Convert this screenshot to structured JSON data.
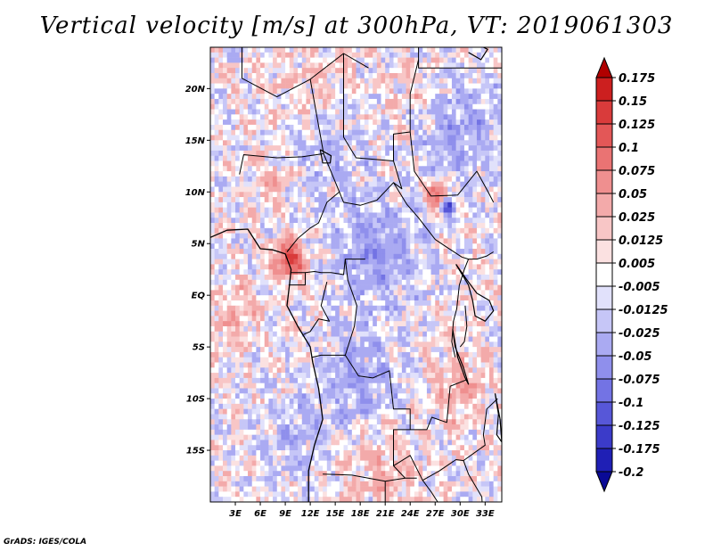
{
  "chart_data": {
    "type": "heatmap",
    "title": "Vertical velocity [m/s] at 300hPa, VT: 2019061303",
    "variable": "Vertical velocity",
    "units": "m/s",
    "level": "300hPa",
    "valid_time": "2019061303",
    "lon_range": [
      0,
      35
    ],
    "lat_range": [
      -20,
      24
    ],
    "x_ticks": [
      {
        "value": 3,
        "label": "3E"
      },
      {
        "value": 6,
        "label": "6E"
      },
      {
        "value": 9,
        "label": "9E"
      },
      {
        "value": 12,
        "label": "12E"
      },
      {
        "value": 15,
        "label": "15E"
      },
      {
        "value": 18,
        "label": "18E"
      },
      {
        "value": 21,
        "label": "21E"
      },
      {
        "value": 24,
        "label": "24E"
      },
      {
        "value": 27,
        "label": "27E"
      },
      {
        "value": 30,
        "label": "30E"
      },
      {
        "value": 33,
        "label": "33E"
      }
    ],
    "y_ticks": [
      {
        "value": 20,
        "label": "20N"
      },
      {
        "value": 15,
        "label": "15N"
      },
      {
        "value": 10,
        "label": "10N"
      },
      {
        "value": 5,
        "label": "5N"
      },
      {
        "value": 0,
        "label": "EQ"
      },
      {
        "value": -5,
        "label": "5S"
      },
      {
        "value": -10,
        "label": "10S"
      },
      {
        "value": -15,
        "label": "15S"
      }
    ],
    "colorbar": {
      "labels": [
        "0.175",
        "0.15",
        "0.125",
        "0.1",
        "0.075",
        "0.05",
        "0.025",
        "0.0125",
        "0.005",
        "-0.005",
        "-0.0125",
        "-0.025",
        "-0.05",
        "-0.075",
        "-0.1",
        "-0.125",
        "-0.175",
        "-0.2"
      ],
      "colors": [
        "#b00000",
        "#cc1f1f",
        "#d93b3b",
        "#e35757",
        "#ea7373",
        "#ef8f8f",
        "#f3aaaa",
        "#f8c6c6",
        "#fbe1e1",
        "#ffffff",
        "#e1e1fb",
        "#c6c6f7",
        "#aaaaf2",
        "#8f8fec",
        "#7373e4",
        "#5757d8",
        "#3b3bc9",
        "#1f1fb5",
        "#0a0a96"
      ],
      "over_color": "#b00000",
      "under_color": "#0a0a96"
    }
  },
  "footer": {
    "credit": "GrADS: IGES/COLA"
  }
}
